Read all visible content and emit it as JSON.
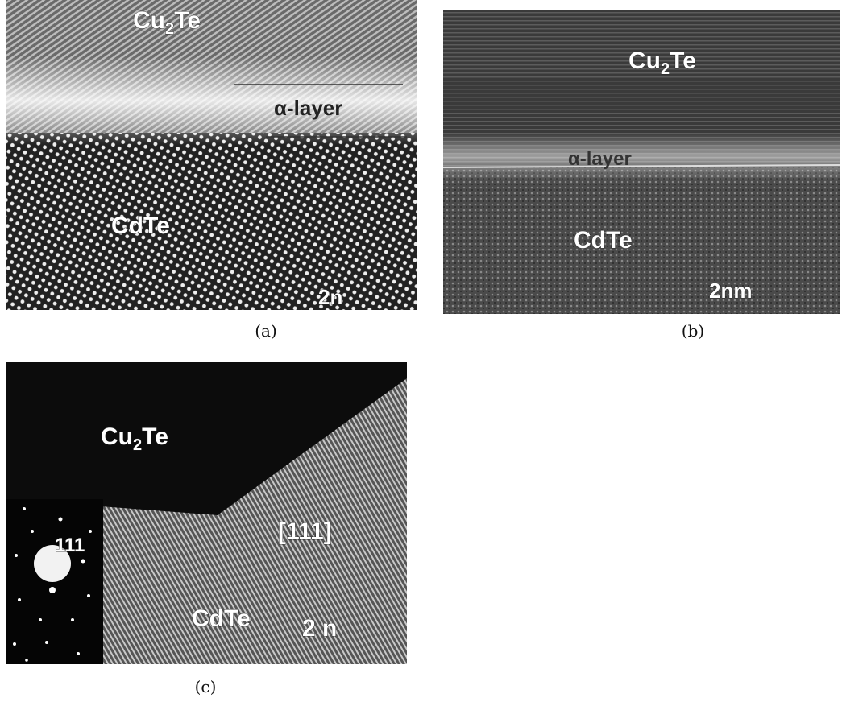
{
  "panels": [
    {
      "caption": "(a)",
      "labels": {
        "top": {
          "base": "Cu",
          "sub": "2",
          "rest": "Te"
        },
        "layer": "α-layer",
        "bottom": "CdTe",
        "scale": "2n"
      }
    },
    {
      "caption": "(b)",
      "labels": {
        "top": {
          "base": "Cu",
          "sub": "2",
          "rest": "Te"
        },
        "layer": "α-layer",
        "bottom": "CdTe",
        "scale": "2nm"
      }
    },
    {
      "caption": "(c)",
      "labels": {
        "top": {
          "base": "Cu",
          "sub": "2",
          "rest": "Te"
        },
        "inset": "111",
        "direction": "[111]",
        "bottom": "CdTe",
        "scale": "2 n"
      }
    }
  ]
}
